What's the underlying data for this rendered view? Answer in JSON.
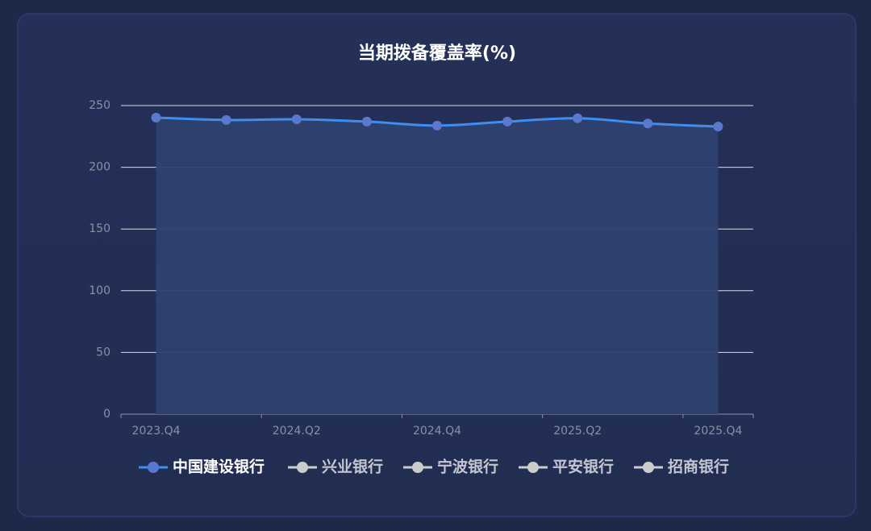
{
  "chart_data": {
    "type": "line",
    "title": "当期拨备覆盖率(%)",
    "categories": [
      "2023.Q4",
      null,
      "2024.Q2",
      null,
      "2024.Q4",
      null,
      "2025.Q2",
      null,
      "2025.Q4"
    ],
    "series": [
      {
        "name": "中国建设银行",
        "color": "#3d8ef0",
        "values": [
          240.2,
          238.3,
          238.9,
          237.0,
          233.8,
          237.0,
          239.7,
          235.5,
          233.0
        ]
      },
      {
        "name": "兴业银行",
        "color": "#cccccc",
        "values": [
          null,
          null,
          null,
          null,
          null,
          null,
          null,
          null,
          null
        ]
      },
      {
        "name": "宁波银行",
        "color": "#cccccc",
        "values": [
          null,
          null,
          null,
          null,
          null,
          null,
          null,
          null,
          null
        ]
      },
      {
        "name": "平安银行",
        "color": "#cccccc",
        "values": [
          null,
          null,
          null,
          null,
          null,
          null,
          null,
          null,
          null
        ]
      },
      {
        "name": "招商银行",
        "color": "#cccccc",
        "values": [
          null,
          null,
          null,
          null,
          null,
          null,
          null,
          null,
          null
        ]
      }
    ],
    "area": true,
    "smooth": true,
    "ylim": [
      0,
      250
    ],
    "yticks": [
      0,
      50,
      100,
      150,
      200,
      250
    ],
    "grid": true,
    "legend": "bottom"
  }
}
